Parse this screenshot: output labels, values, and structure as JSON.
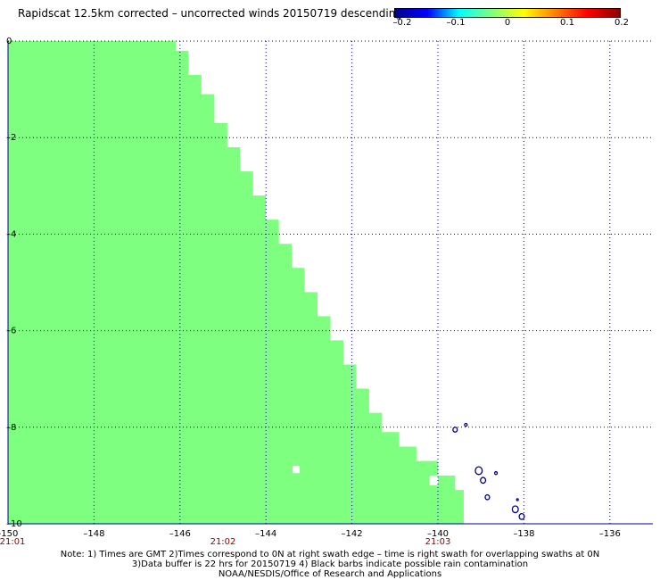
{
  "title": "Rapidscat 12.5km corrected – uncorrected winds 20150719 descending",
  "colorbar": {
    "ticks": [
      "–0.2",
      "–0.1",
      "0",
      "0.1",
      "0.2"
    ],
    "stops": [
      "#00008b",
      "#0000ff",
      "#00ffff",
      "#7fff7f",
      "#ffff00",
      "#ff7f00",
      "#ff0000",
      "#8b0000"
    ]
  },
  "map": {
    "lon_range": [
      -150,
      -135
    ],
    "lat_range": [
      -10,
      0
    ],
    "lon_ticks": [
      -150,
      -148,
      -146,
      -144,
      -142,
      -140,
      -138,
      -136
    ],
    "lon_tick_labels": [
      "-150",
      "–148",
      "–146",
      "–144",
      "–142",
      "–140",
      "–138",
      "–136"
    ],
    "lat_ticks": [
      0,
      -2,
      -4,
      -6,
      -8,
      -10
    ],
    "lat_tick_labels": [
      "0",
      "–2",
      "–4",
      "–6",
      "–8",
      "–10"
    ],
    "time_labels": [
      {
        "lon": -150,
        "text": "21:01"
      },
      {
        "lon": -145,
        "text": "21:02"
      },
      {
        "lon": -140,
        "text": "21:03"
      }
    ],
    "swath_color": "#7fff7f",
    "coast_color": "#00008b",
    "swath_right_edge": [
      {
        "lat": 0.0,
        "lon": -146.1
      },
      {
        "lat": -0.2,
        "lon": -145.8
      },
      {
        "lat": -0.7,
        "lon": -145.5
      },
      {
        "lat": -1.1,
        "lon": -145.2
      },
      {
        "lat": -1.7,
        "lon": -144.9
      },
      {
        "lat": -2.2,
        "lon": -144.6
      },
      {
        "lat": -2.7,
        "lon": -144.3
      },
      {
        "lat": -3.2,
        "lon": -144.0
      },
      {
        "lat": -3.7,
        "lon": -143.7
      },
      {
        "lat": -4.2,
        "lon": -143.4
      },
      {
        "lat": -4.7,
        "lon": -143.1
      },
      {
        "lat": -5.2,
        "lon": -142.8
      },
      {
        "lat": -5.7,
        "lon": -142.5
      },
      {
        "lat": -6.2,
        "lon": -142.2
      },
      {
        "lat": -6.7,
        "lon": -141.9
      },
      {
        "lat": -7.2,
        "lon": -141.6
      },
      {
        "lat": -7.7,
        "lon": -141.3
      },
      {
        "lat": -8.1,
        "lon": -140.9
      },
      {
        "lat": -8.4,
        "lon": -140.5
      },
      {
        "lat": -8.7,
        "lon": -140.0
      },
      {
        "lat": -9.0,
        "lon": -139.6
      },
      {
        "lat": -9.3,
        "lon": -139.4
      },
      {
        "lat": -10.0,
        "lon": -139.2
      }
    ],
    "data_gaps": [
      {
        "lon": [
          -143.38,
          -143.22
        ],
        "lat": [
          -8.8,
          -8.95
        ]
      },
      {
        "lon": [
          -140.2,
          -140.0
        ],
        "lat": [
          -9.0,
          -9.2
        ]
      },
      {
        "lon": [
          -139.2,
          -139.0
        ],
        "lat": [
          -9.4,
          -9.8
        ]
      }
    ],
    "islands": [
      {
        "lon": -139.6,
        "lat": -8.05,
        "r": 0.05
      },
      {
        "lon": -139.35,
        "lat": -7.95,
        "r": 0.03
      },
      {
        "lon": -139.05,
        "lat": -8.9,
        "r": 0.08
      },
      {
        "lon": -138.95,
        "lat": -9.1,
        "r": 0.06
      },
      {
        "lon": -138.65,
        "lat": -8.95,
        "r": 0.03
      },
      {
        "lon": -138.85,
        "lat": -9.45,
        "r": 0.05
      },
      {
        "lon": -138.15,
        "lat": -9.5,
        "r": 0.02
      },
      {
        "lon": -138.2,
        "lat": -9.7,
        "r": 0.07
      },
      {
        "lon": -138.05,
        "lat": -9.85,
        "r": 0.06
      }
    ]
  },
  "notes": [
    "Note: 1) Times are GMT 2)Times correspond to 0N at right swath edge – time is right swath for overlapping swaths at 0N",
    "3)Data buffer is 22 hrs for 20150719 4) Black barbs indicate possible rain contamination",
    "NOAA/NESDIS/Office of Research and Applications"
  ]
}
